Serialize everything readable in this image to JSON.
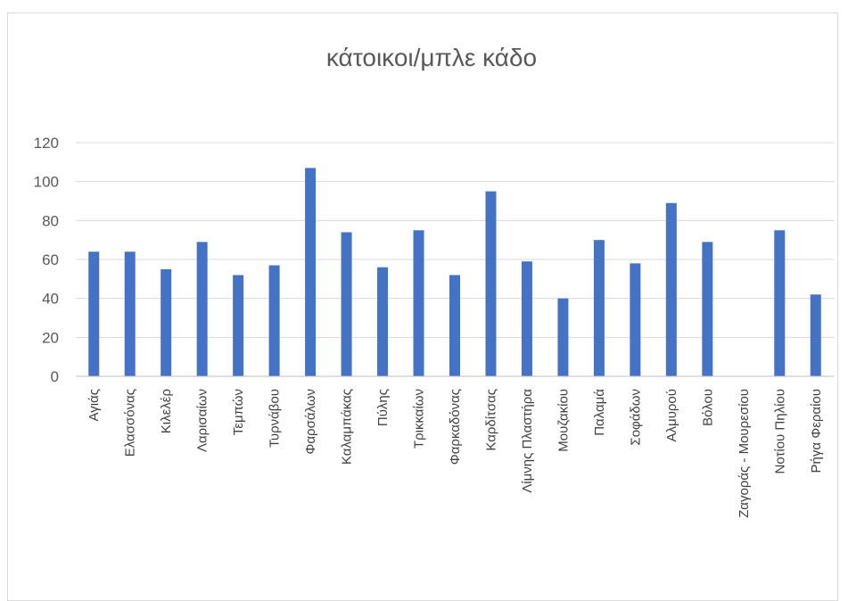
{
  "chart_data": {
    "type": "bar",
    "title": "κάτοικοι/μπλε κάδο",
    "xlabel": "",
    "ylabel": "",
    "ylim": [
      0,
      120
    ],
    "yticks": [
      0,
      20,
      40,
      60,
      80,
      100,
      120
    ],
    "grid": true,
    "bar_color": "#4472c4",
    "categories": [
      "Αγιάς",
      "Ελασσόνας",
      "Κιλελέρ",
      "Λαρισαίων",
      "Τεμπών",
      "Τυρνάβου",
      "Φαρσάλων",
      "Καλαμπάκας",
      "Πύλης",
      "Τρικκαίων",
      "Φαρκαδόνας",
      "Καρδίτσας",
      "Λίμνης Πλαστήρα",
      "Μουζακίου",
      "Παλαμά",
      "Σοφάδων",
      "Αλμυρού",
      "Βόλου",
      "Ζαγοράς - Μουρεσίου",
      "Νοτίου Πηλίου",
      "Ρήγα Φεραίου"
    ],
    "values": [
      64,
      64,
      55,
      69,
      52,
      57,
      107,
      74,
      56,
      75,
      52,
      95,
      59,
      40,
      70,
      58,
      89,
      69,
      0,
      75,
      42
    ]
  }
}
